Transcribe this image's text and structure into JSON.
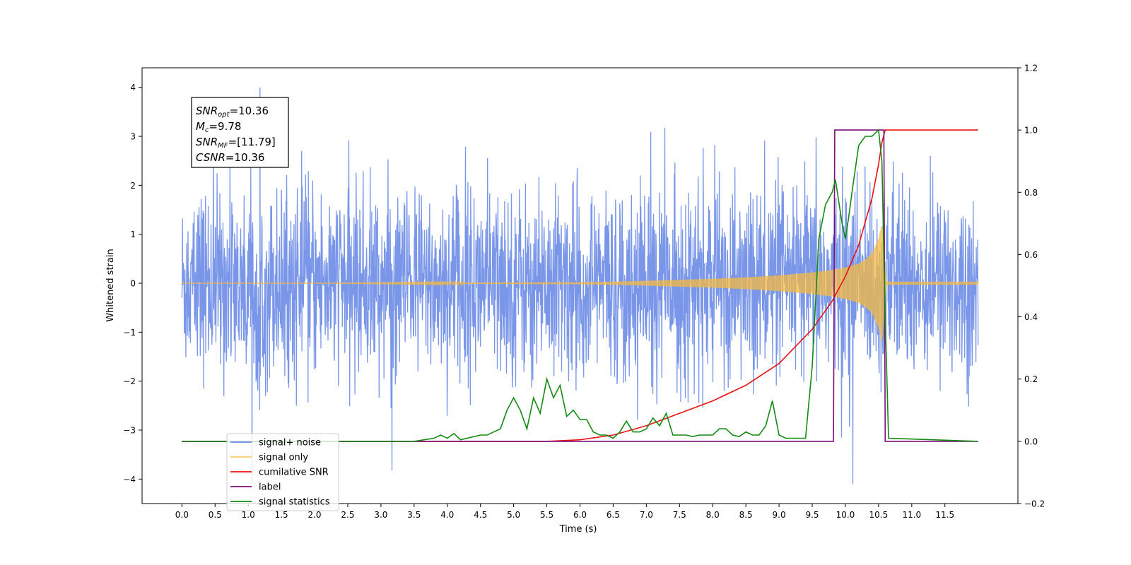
{
  "chart_data": {
    "type": "line",
    "title": "",
    "xlabel": "Time (s)",
    "ylabel": "Whitened strain",
    "y2label": "",
    "xlim": [
      -0.6,
      12.6
    ],
    "ylim": [
      -4.5,
      4.4
    ],
    "y2lim": [
      -0.2,
      1.2
    ],
    "xticks": [
      "0.0",
      "0.5",
      "1.0",
      "1.5",
      "2.0",
      "2.5",
      "3.0",
      "3.5",
      "4.0",
      "4.5",
      "5.0",
      "5.5",
      "6.0",
      "6.5",
      "7.0",
      "7.5",
      "8.0",
      "8.5",
      "9.0",
      "9.5",
      "10.0",
      "10.5",
      "11.0",
      "11.5"
    ],
    "yticks": [
      "4",
      "3",
      "2",
      "1",
      "0",
      "−1",
      "−2",
      "−3",
      "−4"
    ],
    "y2ticks": [
      "1.2",
      "1.0",
      "0.8",
      "0.6",
      "0.4",
      "0.2",
      "0.0",
      "−0.2"
    ],
    "grid": false,
    "legend_position": "lower-left",
    "annotation": [
      {
        "sym": "SNR",
        "sub": "opt",
        "text": "=10.36"
      },
      {
        "sym": "M",
        "sub": "c",
        "text": "=9.78"
      },
      {
        "sym": "SNR",
        "sub": "MF",
        "text": "=[11.79]"
      },
      {
        "sym": "CSNR",
        "sub": "",
        "text": "=10.36"
      }
    ],
    "series": [
      {
        "name": "signal+ noise",
        "axis": "left",
        "color": "#6a8be6",
        "envelope": {
          "x": [
            0.0,
            12.0
          ],
          "upper": 2.4,
          "lower": -2.6,
          "peak_max": 4.0,
          "peak_min": -4.1,
          "sigma": 1.0
        }
      },
      {
        "name": "signal only",
        "axis": "left",
        "color": "#f5b942",
        "x": [
          0.0,
          2.0,
          4.0,
          6.0,
          6.5,
          7.0,
          7.5,
          8.0,
          8.5,
          9.0,
          9.5,
          9.8,
          10.0,
          10.2,
          10.3,
          10.4,
          10.5,
          10.55,
          10.6,
          10.62,
          12.0
        ],
        "amplitude": [
          0.0,
          0.0,
          0.01,
          0.02,
          0.03,
          0.05,
          0.07,
          0.09,
          0.12,
          0.16,
          0.22,
          0.27,
          0.32,
          0.4,
          0.48,
          0.6,
          0.9,
          1.2,
          0.3,
          0.03,
          0.03
        ]
      },
      {
        "name": "cumilative SNR",
        "axis": "right",
        "color": "#ee1111",
        "x": [
          0.0,
          5.5,
          6.0,
          6.5,
          7.0,
          7.5,
          8.0,
          8.5,
          9.0,
          9.5,
          9.8,
          10.0,
          10.2,
          10.4,
          10.5,
          10.55,
          10.6,
          12.0
        ],
        "y": [
          0.0,
          0.0,
          0.005,
          0.02,
          0.05,
          0.09,
          0.13,
          0.18,
          0.25,
          0.36,
          0.45,
          0.53,
          0.63,
          0.78,
          0.89,
          0.96,
          1.0,
          1.0
        ]
      },
      {
        "name": "label",
        "axis": "right",
        "color": "#7a0f7a",
        "x": [
          0.0,
          9.82,
          9.84,
          10.58,
          10.6,
          12.0
        ],
        "y": [
          0.0,
          0.0,
          1.0,
          1.0,
          0.0,
          0.0
        ]
      },
      {
        "name": "signal statistics",
        "axis": "right",
        "color": "#138a13",
        "x": [
          0.0,
          3.5,
          3.8,
          3.9,
          4.0,
          4.1,
          4.2,
          4.5,
          4.6,
          4.8,
          4.9,
          5.0,
          5.1,
          5.2,
          5.3,
          5.4,
          5.5,
          5.6,
          5.7,
          5.8,
          5.9,
          6.0,
          6.1,
          6.2,
          6.3,
          6.4,
          6.5,
          6.6,
          6.7,
          6.8,
          6.9,
          7.0,
          7.1,
          7.2,
          7.3,
          7.4,
          7.5,
          7.6,
          7.7,
          7.8,
          8.0,
          8.1,
          8.2,
          8.3,
          8.4,
          8.5,
          8.6,
          8.7,
          8.8,
          8.9,
          9.0,
          9.1,
          9.2,
          9.3,
          9.4,
          9.5,
          9.6,
          9.7,
          9.8,
          9.85,
          9.9,
          9.95,
          10.0,
          10.05,
          10.1,
          10.2,
          10.3,
          10.4,
          10.5,
          10.55,
          10.6,
          10.65,
          12.0
        ],
        "y": [
          0.0,
          0.0,
          0.01,
          0.02,
          0.01,
          0.025,
          0.005,
          0.02,
          0.02,
          0.04,
          0.1,
          0.14,
          0.1,
          0.04,
          0.14,
          0.09,
          0.2,
          0.14,
          0.18,
          0.08,
          0.1,
          0.07,
          0.07,
          0.03,
          0.02,
          0.02,
          0.01,
          0.03,
          0.065,
          0.03,
          0.03,
          0.04,
          0.075,
          0.05,
          0.09,
          0.02,
          0.02,
          0.02,
          0.015,
          0.02,
          0.02,
          0.04,
          0.04,
          0.02,
          0.015,
          0.03,
          0.02,
          0.02,
          0.05,
          0.13,
          0.02,
          0.01,
          0.01,
          0.01,
          0.01,
          0.24,
          0.65,
          0.76,
          0.8,
          0.84,
          0.77,
          0.7,
          0.65,
          0.72,
          0.8,
          0.95,
          0.98,
          0.98,
          1.0,
          0.9,
          0.4,
          0.01,
          0.0
        ]
      }
    ]
  }
}
